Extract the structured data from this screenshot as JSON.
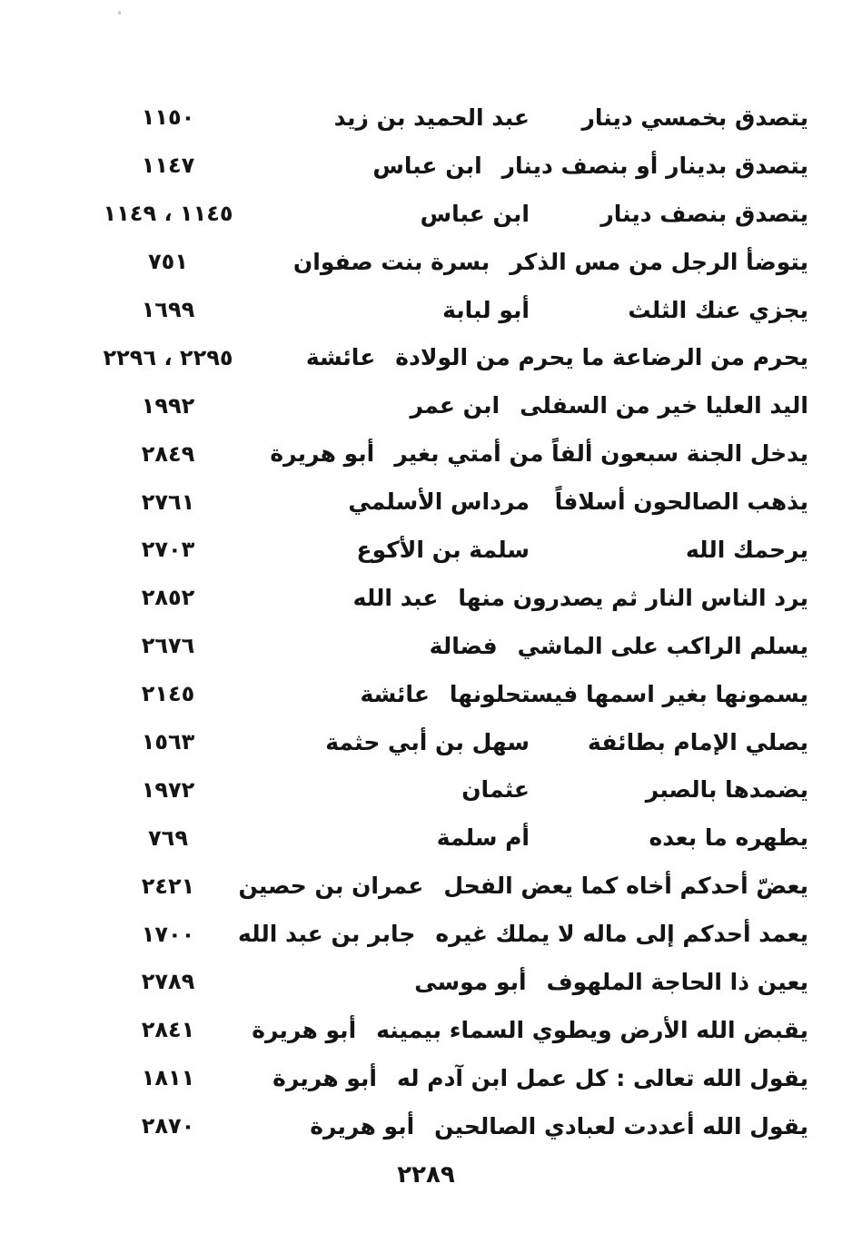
{
  "page": {
    "number": "٢٢٨٩"
  },
  "rows": [
    {
      "hadith": "يتصدق بخمسي دينار",
      "narrator": "عبد الحميد بن زيد",
      "nums": "١١٥٠"
    },
    {
      "hadith": "يتصدق بدينار أو بنصف دينار",
      "narrator": "ابن عباس",
      "nums": "١١٤٧"
    },
    {
      "hadith": "يتصدق بنصف دينار",
      "narrator": "ابن عباس",
      "nums": "١١٤٥ ، ١١٤٩"
    },
    {
      "hadith": "يتوضأ الرجل من مس الذكر",
      "narrator": "بسرة بنت صفوان",
      "nums": "٧٥١"
    },
    {
      "hadith": "يجزي عنك الثلث",
      "narrator": "أبو لبابة",
      "nums": "١٦٩٩"
    },
    {
      "hadith": "يحرم من الرضاعة ما يحرم من الولادة",
      "narrator": "عائشة",
      "nums": "٢٢٩٥ ، ٢٢٩٦"
    },
    {
      "hadith": "اليد العليا خير من السفلى",
      "narrator": "ابن عمر",
      "nums": "١٩٩٢"
    },
    {
      "hadith": "يدخل الجنة سبعون ألفاً من أمتي بغير",
      "narrator": "أبو هريرة",
      "nums": "٢٨٤٩"
    },
    {
      "hadith": "يذهب الصالحون أسلافاً",
      "narrator": "مرداس الأسلمي",
      "nums": "٢٧٦١"
    },
    {
      "hadith": "يرحمك الله",
      "narrator": "سلمة بن الأكوع",
      "nums": "٢٧٠٣"
    },
    {
      "hadith": "يرد الناس النار ثم يصدرون منها",
      "narrator": "عبد الله",
      "nums": "٢٨٥٢"
    },
    {
      "hadith": "يسلم الراكب على الماشي",
      "narrator": "فضالة",
      "nums": "٢٦٧٦"
    },
    {
      "hadith": "يسمونها بغير اسمها فيستحلونها",
      "narrator": "عائشة",
      "nums": "٢١٤٥"
    },
    {
      "hadith": "يصلي الإمام بطائفة",
      "narrator": "سهل بن أبي حثمة",
      "nums": "١٥٦٣"
    },
    {
      "hadith": "يضمدها بالصبر",
      "narrator": "عثمان",
      "nums": "١٩٧٢"
    },
    {
      "hadith": "يطهره ما بعده",
      "narrator": "أم سلمة",
      "nums": "٧٦٩"
    },
    {
      "hadith": "يعضّ أحدكم أخاه كما يعض الفحل",
      "narrator": "عمران بن حصين",
      "nums": "٢٤٢١"
    },
    {
      "hadith": "يعمد أحدكم إلى ماله لا يملك غيره",
      "narrator": "جابر بن عبد الله",
      "nums": "١٧٠٠"
    },
    {
      "hadith": "يعين ذا الحاجة الملهوف",
      "narrator": "أبو موسى",
      "nums": "٢٧٨٩"
    },
    {
      "hadith": "يقبض الله الأرض ويطوي السماء بيمينه",
      "narrator": "أبو هريرة",
      "nums": "٢٨٤١"
    },
    {
      "hadith": "يقول الله تعالى : كل عمل ابن آدم له",
      "narrator": "أبو هريرة",
      "nums": "١٨١١"
    },
    {
      "hadith": "يقول الله أعددت لعبادي الصالحين",
      "narrator": "أبو هريرة",
      "nums": "٢٨٧٠"
    }
  ]
}
